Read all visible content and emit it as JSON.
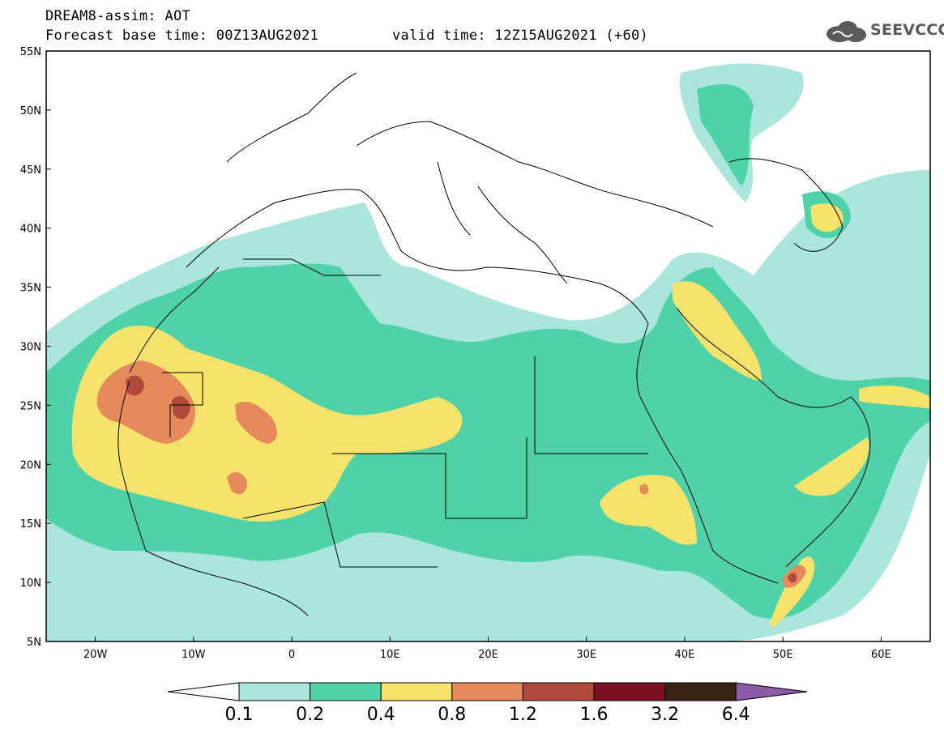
{
  "header": {
    "title": "DREAM8-assim: AOT",
    "forecast_base": "Forecast base time: 00Z13AUG2021",
    "valid_time": "valid time: 12Z15AUG2021 (+60)",
    "logo_text": "SEEVCCC"
  },
  "map": {
    "lon_range": [
      -25,
      65
    ],
    "lat_range": [
      5,
      55
    ],
    "lat_labels": [
      "55N",
      "50N",
      "45N",
      "40N",
      "35N",
      "30N",
      "25N",
      "20N",
      "15N",
      "10N",
      "5N"
    ],
    "lon_labels": [
      "20W",
      "10W",
      "0",
      "10E",
      "20E",
      "30E",
      "40E",
      "50E",
      "60E"
    ],
    "projection": "equirectangular",
    "field": "aerosol optical thickness"
  },
  "colorbar": {
    "labels": [
      "0.1",
      "0.2",
      "0.4",
      "0.8",
      "1.2",
      "1.6",
      "3.2",
      "6.4"
    ],
    "colors": {
      "below": "#ffffff",
      "0.1-0.2": "#aae6dc",
      "0.2-0.4": "#4fd2a8",
      "0.4-0.8": "#f5e36b",
      "0.8-1.2": "#e68a5c",
      "1.2-1.6": "#b04a3a",
      "1.6-3.2": "#7a1020",
      "3.2-6.4": "#3a2214",
      "above": "#8c5aa8"
    }
  }
}
